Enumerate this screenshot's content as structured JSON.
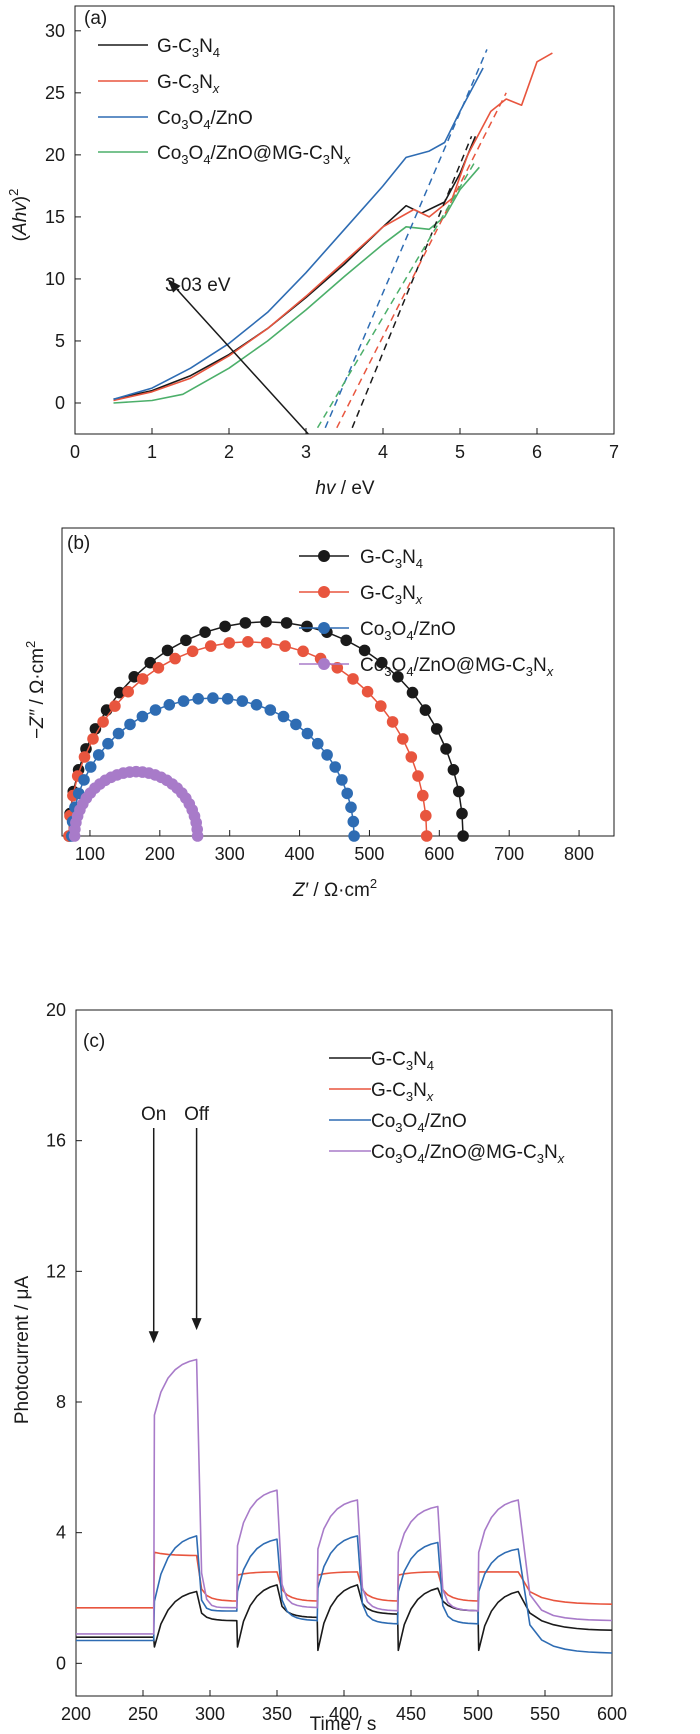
{
  "colors": {
    "g_c3n4": "#1a1a1a",
    "g_c3nx": "#e8553e",
    "co3o4_zno": "#2e6cb3",
    "composite_a": "#4caf6a",
    "composite_bc": "#a87bc9"
  },
  "legend": {
    "g_c3n4": {
      "base": "G-C",
      "s1": "3",
      "m": "N",
      "s2": "4"
    },
    "g_c3nx": {
      "base": "G-C",
      "s1": "3",
      "m": "N",
      "s2": "x"
    },
    "co3o4_zno": {
      "base": "Co",
      "s1": "3",
      "m": "O",
      "s2": "4",
      "tail": "/ZnO"
    },
    "composite": {
      "base": "Co",
      "s1": "3",
      "m": "O",
      "s2": "4",
      "m2": "/ZnO@MG-C",
      "s3": "3",
      "m3": "N",
      "s4": "x"
    }
  },
  "chart_data": [
    {
      "panel": "(a)",
      "type": "line",
      "xlabel": {
        "italic": "hv",
        "rest": " / eV"
      },
      "ylabel": {
        "open": "(",
        "italic": "Ahv",
        "close": ")",
        "sup": "2"
      },
      "xlim": [
        0,
        7
      ],
      "ylim": [
        -2.5,
        32
      ],
      "xticks": [
        0,
        1,
        2,
        3,
        4,
        5,
        6,
        7
      ],
      "yticks": [
        0,
        5,
        10,
        15,
        20,
        25,
        30
      ],
      "annotation": {
        "text": "3.03 eV",
        "arrow_from": [
          3.03,
          -2.5
        ],
        "arrow_to": [
          1.2,
          10
        ]
      },
      "series": [
        {
          "name": "G-C3N4",
          "color_key": "g_c3n4",
          "x": [
            0.5,
            1.0,
            1.5,
            2.0,
            2.5,
            3.0,
            3.5,
            4.0,
            4.3,
            4.5,
            4.8,
            5.0,
            5.2
          ],
          "y": [
            0.3,
            1.0,
            2.2,
            3.9,
            6.0,
            8.5,
            11.2,
            14.2,
            15.9,
            15.3,
            16.2,
            18.5,
            21.5
          ]
        },
        {
          "name": "G-C3Nx",
          "color_key": "g_c3nx",
          "x": [
            0.5,
            1.0,
            1.5,
            2.0,
            2.5,
            3.0,
            3.5,
            4.0,
            4.4,
            4.6,
            4.9,
            5.1,
            5.4,
            5.6,
            5.8,
            6.0,
            6.2
          ],
          "y": [
            0.2,
            0.9,
            2.0,
            3.8,
            6.0,
            8.6,
            11.4,
            14.2,
            15.6,
            15.0,
            16.5,
            20.0,
            23.5,
            24.5,
            24.0,
            27.5,
            28.2
          ]
        },
        {
          "name": "Co3O4/ZnO",
          "color_key": "co3o4_zno",
          "x": [
            0.5,
            1.0,
            1.5,
            2.0,
            2.5,
            3.0,
            3.5,
            4.0,
            4.3,
            4.6,
            4.8,
            5.0,
            5.3
          ],
          "y": [
            0.3,
            1.2,
            2.8,
            4.8,
            7.3,
            10.5,
            14.0,
            17.5,
            19.8,
            20.3,
            21.0,
            23.5,
            27.0
          ]
        },
        {
          "name": "Co3O4/ZnO@MG-C3Nx",
          "color_key": "composite_a",
          "x": [
            0.5,
            1.0,
            1.4,
            2.0,
            2.5,
            3.0,
            3.5,
            4.0,
            4.3,
            4.6,
            4.8,
            5.0,
            5.25
          ],
          "y": [
            0.0,
            0.2,
            0.7,
            2.8,
            5.0,
            7.5,
            10.2,
            12.8,
            14.2,
            14.0,
            15.0,
            17.2,
            19.0
          ]
        }
      ],
      "tangents": [
        {
          "color_key": "g_c3n4",
          "x": [
            3.6,
            5.15
          ],
          "y": [
            -2.0,
            21.5
          ]
        },
        {
          "color_key": "g_c3nx",
          "x": [
            3.4,
            5.6
          ],
          "y": [
            -2.0,
            25.0
          ]
        },
        {
          "color_key": "co3o4_zno",
          "x": [
            3.25,
            5.35
          ],
          "y": [
            -2.0,
            28.5
          ]
        },
        {
          "color_key": "composite_a",
          "x": [
            3.15,
            5.2
          ],
          "y": [
            -2.0,
            19.5
          ]
        }
      ]
    },
    {
      "panel": "(b)",
      "type": "scatter",
      "xlabel": {
        "italic": "Z′",
        "rest": " / Ω·cm",
        "sup": "2"
      },
      "ylabel": {
        "italic": "−Z″",
        "rest": " / Ω·cm",
        "sup": "2"
      },
      "xlim": [
        60,
        850
      ],
      "ylim": [
        0,
        230
      ],
      "xticks": [
        100,
        200,
        300,
        400,
        500,
        600,
        700,
        800
      ],
      "yticks": [],
      "series": [
        {
          "name": "G-C3N4",
          "color_key": "g_c3n4",
          "center": 352,
          "radius": 282,
          "height": 160
        },
        {
          "name": "G-C3Nx",
          "color_key": "g_c3nx",
          "center": 326,
          "radius": 256,
          "height": 145
        },
        {
          "name": "Co3O4/ZnO",
          "color_key": "co3o4_zno",
          "center": 276,
          "radius": 202,
          "height": 103
        },
        {
          "name": "Co3O4/ZnO@MG-C3Nx",
          "color_key": "composite_bc",
          "center": 166,
          "radius": 88,
          "height": 48
        }
      ]
    },
    {
      "panel": "(c)",
      "type": "line",
      "xlabel": {
        "italic": "",
        "rest": "Time / s"
      },
      "ylabel": {
        "italic": "",
        "rest": "Photocurrent / μA"
      },
      "xlim": [
        200,
        600
      ],
      "ylim": [
        -1,
        20
      ],
      "xticks": [
        200,
        250,
        300,
        350,
        400,
        450,
        500,
        550,
        600
      ],
      "yticks": [
        0,
        4,
        8,
        12,
        16,
        20
      ],
      "annotations": [
        {
          "text": "On",
          "x": 258,
          "tip_y": 9.8
        },
        {
          "text": "Off",
          "x": 290,
          "tip_y": 10.2
        }
      ],
      "on_times": [
        258,
        320,
        380,
        440,
        500
      ],
      "off_times": [
        290,
        350,
        410,
        470,
        530
      ],
      "series": [
        {
          "name": "G-C3N4",
          "color_key": "g_c3n4",
          "dark": [
            0.8,
            1.3,
            1.4,
            1.5,
            1.6,
            1.0
          ],
          "jump": [
            0.5,
            0.5,
            0.4,
            0.4,
            0.4
          ],
          "peak": [
            2.2,
            2.4,
            2.4,
            2.3,
            2.2
          ]
        },
        {
          "name": "G-C3Nx",
          "color_key": "g_c3nx",
          "dark": [
            1.7,
            1.9,
            1.9,
            1.9,
            1.9,
            1.8
          ],
          "jump": [
            3.4,
            2.7,
            2.7,
            2.7,
            2.8
          ],
          "peak": [
            3.3,
            2.8,
            2.8,
            2.8,
            2.8
          ]
        },
        {
          "name": "Co3O4/ZnO",
          "color_key": "co3o4_zno",
          "dark": [
            0.7,
            1.6,
            1.3,
            1.2,
            1.2,
            0.3
          ],
          "jump": [
            1.9,
            2.2,
            2.3,
            2.2,
            2.2
          ],
          "peak": [
            3.9,
            3.8,
            3.9,
            3.7,
            3.5
          ]
        },
        {
          "name": "Co3O4/ZnO@MG-C3Nx",
          "color_key": "composite_bc",
          "dark": [
            0.9,
            1.7,
            1.7,
            1.6,
            1.6,
            1.3
          ],
          "jump": [
            7.6,
            3.6,
            3.5,
            3.4,
            3.4
          ],
          "peak": [
            9.3,
            5.3,
            5.0,
            4.8,
            5.0
          ]
        }
      ]
    }
  ]
}
